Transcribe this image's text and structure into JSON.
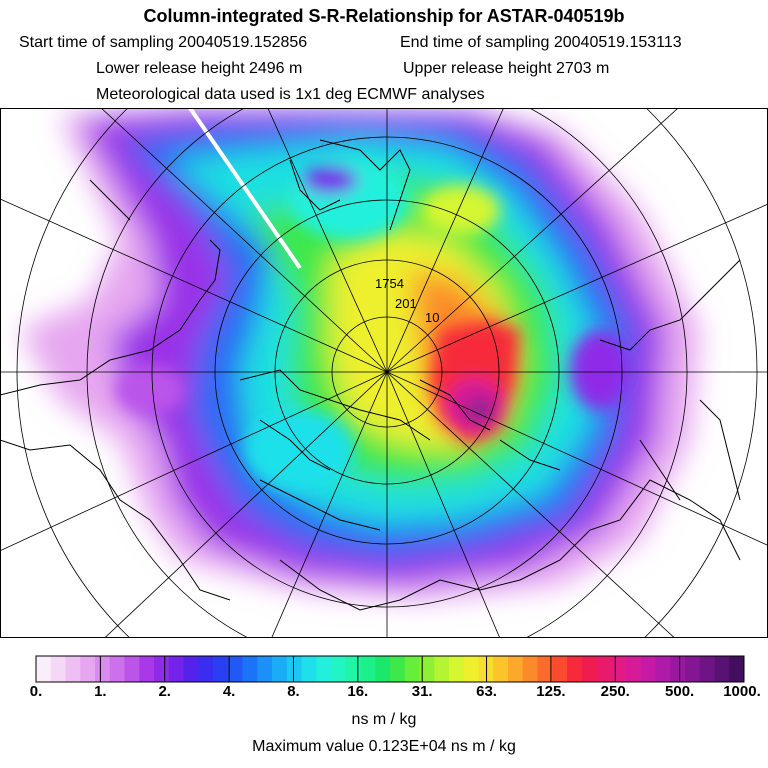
{
  "header": {
    "title": "Column-integrated S-R-Relationship for ASTAR-040519b",
    "start_label": "Start time of sampling 20040519.152856",
    "end_label": "End time of sampling 20040519.153113",
    "lower_label": "Lower release height 2496 m",
    "upper_label": "Upper release height 2703 m",
    "met_label": "Meteorological data used is 1x1 deg ECMWF analyses"
  },
  "map_labels": [
    "1754",
    "201",
    "10"
  ],
  "colorbar": {
    "ticks": [
      "0.",
      "1.",
      "2.",
      "4.",
      "8.",
      "16.",
      "31.",
      "63.",
      "125.",
      "250.",
      "500.",
      "1000."
    ],
    "colors": [
      "#fbeefb",
      "#f5d8f7",
      "#eebff3",
      "#e6a6f0",
      "#d98cee",
      "#cc70ec",
      "#bb55ea",
      "#a838e8",
      "#8f2ce8",
      "#7424ea",
      "#5522ec",
      "#3a2cf0",
      "#2a3ff4",
      "#2158f6",
      "#1b74f8",
      "#1a90f8",
      "#1aacf6",
      "#1ac8f2",
      "#1fe0ea",
      "#22f0dc",
      "#22f4c4",
      "#1ff4a8",
      "#1cf08a",
      "#1ae86a",
      "#3ee84a",
      "#66ee3a",
      "#8ef034",
      "#b4f432",
      "#d6f630",
      "#eef02e",
      "#f8de2c",
      "#fac42a",
      "#fca82a",
      "#fc8a2a",
      "#fc6a2c",
      "#fa4a30",
      "#f62a3a",
      "#f01c50",
      "#ea1a6a",
      "#e21a84",
      "#d61a98",
      "#c61aa6",
      "#b01aa8",
      "#9a18a0",
      "#841694",
      "#6e1484",
      "#581272",
      "#420e5e"
    ],
    "units": "ns m / kg",
    "max_text": "Maximum value  0.123E+04 ns m / kg"
  }
}
